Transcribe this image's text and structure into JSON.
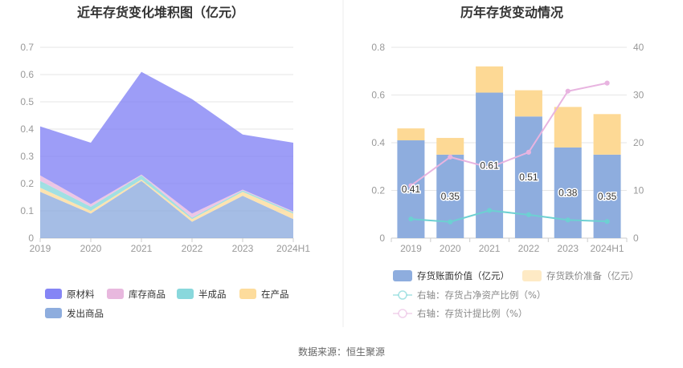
{
  "source_text": "数据来源：恒生聚源",
  "chart_data": [
    {
      "type": "area",
      "stacked": true,
      "title": "近年存货变化堆积图（亿元）",
      "categories": [
        "2019",
        "2020",
        "2021",
        "2022",
        "2023",
        "2024H1"
      ],
      "y_ticks": [
        "0",
        "0.1",
        "0.2",
        "0.3",
        "0.4",
        "0.5",
        "0.6",
        "0.7"
      ],
      "ylim": [
        0,
        0.7
      ],
      "series": [
        {
          "name": "发出商品",
          "color": "#8eadde",
          "values": [
            0.17,
            0.09,
            0.21,
            0.06,
            0.155,
            0.07
          ]
        },
        {
          "name": "在产品",
          "color": "#fddc9c",
          "values": [
            0.015,
            0.01,
            0.005,
            0.01,
            0.015,
            0.02
          ]
        },
        {
          "name": "半成品",
          "color": "#89d8dc",
          "values": [
            0.025,
            0.015,
            0.015,
            0.005,
            0.005,
            0.005
          ]
        },
        {
          "name": "库存商品",
          "color": "#e8b8de",
          "values": [
            0.02,
            0.01,
            0.003,
            0.015,
            0.003,
            0.003
          ]
        },
        {
          "name": "原材料",
          "color": "#8585f5",
          "values": [
            0.18,
            0.225,
            0.377,
            0.42,
            0.202,
            0.252
          ]
        }
      ],
      "legend_order": [
        "原材料",
        "库存商品",
        "半成品",
        "在产品",
        "发出商品"
      ],
      "grid": true,
      "legend_position": "bottom"
    },
    {
      "type": "bar",
      "stacked": true,
      "title": "历年存货变动情况",
      "categories": [
        "2019",
        "2020",
        "2021",
        "2022",
        "2023",
        "2024H1"
      ],
      "y_left_ticks": [
        "0",
        "0.2",
        "0.4",
        "0.6",
        "0.8"
      ],
      "y_right_ticks": [
        "0",
        "10",
        "20",
        "30",
        "40"
      ],
      "ylim_left": [
        0,
        0.8
      ],
      "ylim_right": [
        0,
        40
      ],
      "bars": [
        {
          "name": "存货账面价值（亿元）",
          "color": "#8eadde",
          "values": [
            0.41,
            0.35,
            0.61,
            0.51,
            0.38,
            0.35
          ],
          "labels": [
            "0.41",
            "0.35",
            "0.61",
            "0.51",
            "0.38",
            "0.35"
          ]
        },
        {
          "name": "存货跌价准备（亿元）",
          "color": "#fdd995",
          "values": [
            0.05,
            0.07,
            0.11,
            0.11,
            0.17,
            0.17
          ]
        }
      ],
      "lines": [
        {
          "name": "右轴：存货占净资产比例（%）",
          "color": "#6dd0d2",
          "values": [
            4.0,
            3.4,
            5.8,
            4.9,
            3.8,
            3.5
          ]
        },
        {
          "name": "右轴：存货计提比例（%）",
          "color": "#e8b4e0",
          "values": [
            11.0,
            17.0,
            14.8,
            18.0,
            30.8,
            32.5
          ]
        }
      ],
      "grid": true,
      "legend_position": "bottom"
    }
  ]
}
